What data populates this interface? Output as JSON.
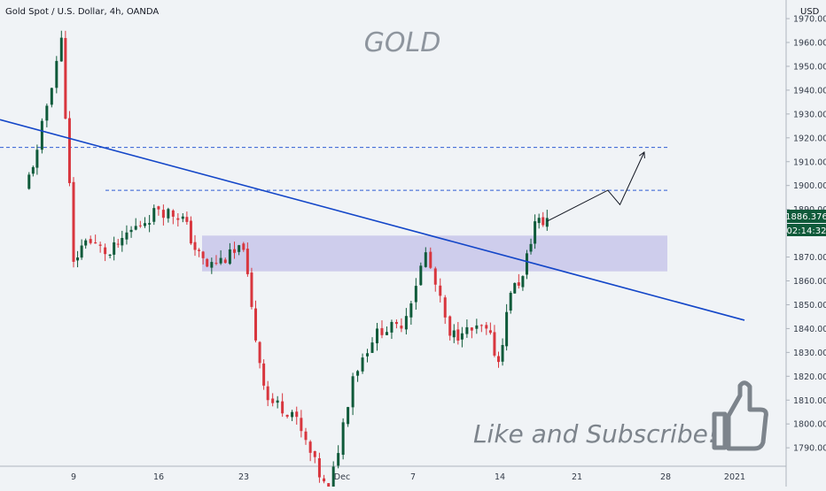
{
  "header": {
    "symbol_label": "Gold Spot / U.S. Dollar, 4h, OANDA",
    "currency": "USD"
  },
  "watermark": {
    "title": "GOLD",
    "cta": "Like and Subscribe!",
    "cta_icon": "thumbs-up-icon"
  },
  "colors": {
    "background": "#f0f3f6",
    "up_candle": "#0f5a3a",
    "down_candle": "#d8363e",
    "trendline": "#1346c8",
    "resistance": "#2f5dd3",
    "zone_fill": "#c8c6ea",
    "price_tag": "#0f5a3a"
  },
  "price_axis": {
    "ticks": [
      "1970.000",
      "1960.000",
      "1950.000",
      "1940.000",
      "1930.000",
      "1920.000",
      "1910.000",
      "1900.000",
      "1890.000",
      "1880.000",
      "1870.000",
      "1860.000",
      "1850.000",
      "1840.000",
      "1830.000",
      "1820.000",
      "1810.000",
      "1800.000",
      "1790.000"
    ],
    "current_price": "1886.376",
    "countdown": "02:14:32"
  },
  "time_axis": {
    "ticks": [
      "9",
      "16",
      "23",
      "Dec",
      "7",
      "14",
      "21",
      "28",
      "2021"
    ]
  },
  "chart_data": {
    "type": "candlestick",
    "symbol": "XAUUSD",
    "timeframe": "4h",
    "ylim": [
      1780,
      1975
    ],
    "x_ticks": [
      "9",
      "16",
      "23",
      "Dec",
      "7",
      "14",
      "21",
      "28",
      "2021"
    ],
    "key_points": [
      {
        "x": "Nov 5",
        "close": 1898
      },
      {
        "x": "Nov 6",
        "close": 1915
      },
      {
        "x": "Nov 8",
        "close": 1962
      },
      {
        "x": "Nov 9",
        "close": 1868
      },
      {
        "x": "Nov 10",
        "close": 1877
      },
      {
        "x": "Nov 12",
        "close": 1871
      },
      {
        "x": "Nov 13",
        "close": 1878
      },
      {
        "x": "Nov 16",
        "close": 1890
      },
      {
        "x": "Nov 18",
        "close": 1887
      },
      {
        "x": "Nov 19",
        "close": 1873
      },
      {
        "x": "Nov 20",
        "close": 1866
      },
      {
        "x": "Nov 23",
        "close": 1873
      },
      {
        "x": "Nov 24",
        "close": 1835
      },
      {
        "x": "Nov 25",
        "close": 1810
      },
      {
        "x": "Nov 27",
        "close": 1805
      },
      {
        "x": "Nov 30",
        "close": 1770
      },
      {
        "x": "Dec 2",
        "close": 1820
      },
      {
        "x": "Dec 4",
        "close": 1840
      },
      {
        "x": "Dec 6",
        "close": 1840
      },
      {
        "x": "Dec 8",
        "close": 1872
      },
      {
        "x": "Dec 10",
        "close": 1837
      },
      {
        "x": "Dec 11",
        "close": 1838
      },
      {
        "x": "Dec 13",
        "close": 1840
      },
      {
        "x": "Dec 14",
        "close": 1826
      },
      {
        "x": "Dec 15",
        "close": 1855
      },
      {
        "x": "Dec 16",
        "close": 1862
      },
      {
        "x": "Dec 17",
        "close": 1885
      },
      {
        "x": "Dec 18",
        "close": 1884
      },
      {
        "x": "Dec 18 last",
        "close": 1886.376
      }
    ],
    "annotations": {
      "trendline": {
        "from": {
          "x": "Nov 1",
          "y": 1915
        },
        "to": {
          "x": "Jan 1",
          "y": 1845
        }
      },
      "resistance_levels": [
        1916,
        1898
      ],
      "support_zone": [
        1864,
        1879
      ],
      "projection": [
        {
          "x": "Dec 18",
          "y": 1885
        },
        {
          "x": "Dec 23",
          "y": 1898
        },
        {
          "x": "Dec 24",
          "y": 1892
        },
        {
          "x": "Dec 26",
          "y": 1914
        }
      ]
    }
  }
}
